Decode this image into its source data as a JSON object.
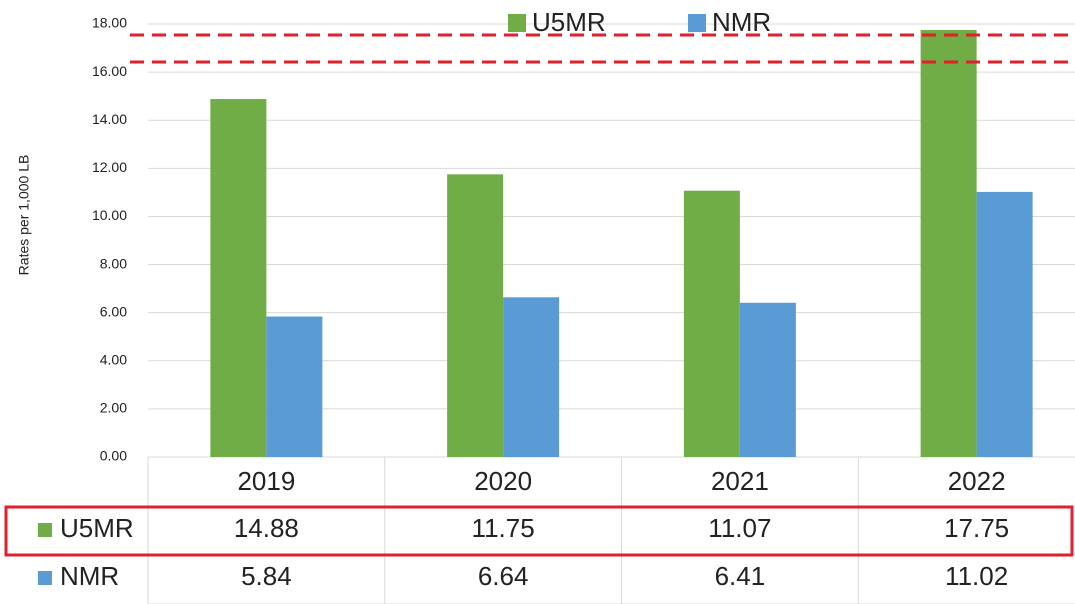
{
  "chart_data": {
    "type": "bar",
    "y_label": "Rates per 1,000 LB",
    "categories": [
      "2019",
      "2020",
      "2021",
      "2022"
    ],
    "series": [
      {
        "name": "U5MR",
        "color": "#70ad47",
        "values": [
          14.88,
          11.75,
          11.07,
          17.75
        ]
      },
      {
        "name": "NMR",
        "color": "#5b9bd5",
        "values": [
          5.84,
          6.64,
          6.41,
          11.02
        ]
      }
    ],
    "ylim": [
      0,
      18
    ],
    "yticks": [
      {
        "value": 0,
        "label": "0.00"
      },
      {
        "value": 2,
        "label": "2.00"
      },
      {
        "value": 4,
        "label": "4.00"
      },
      {
        "value": 6,
        "label": "6.00"
      },
      {
        "value": 8,
        "label": "8.00"
      },
      {
        "value": 10,
        "label": "10.00"
      },
      {
        "value": 12,
        "label": "12.00"
      },
      {
        "value": 14,
        "label": "14.00"
      },
      {
        "value": 16,
        "label": "16.00"
      },
      {
        "value": 18,
        "label": "18.00"
      }
    ],
    "grid": true,
    "legend": "top"
  }
}
